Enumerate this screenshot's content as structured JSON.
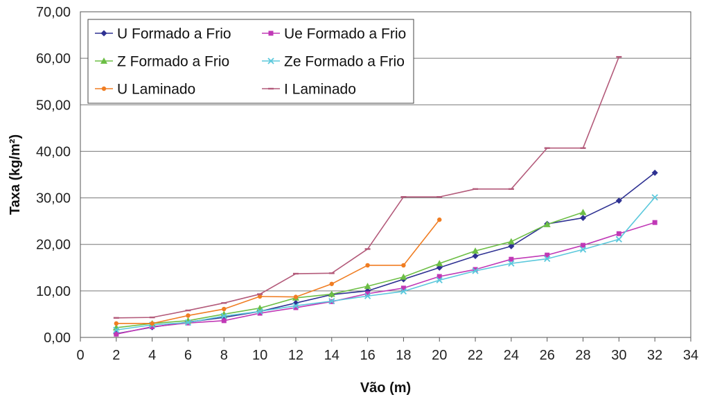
{
  "chart_data": {
    "type": "line",
    "xlabel": "Vão (m)",
    "ylabel": "Taxa (kg/m²)",
    "xlim": [
      0,
      34
    ],
    "ylim": [
      0,
      70
    ],
    "x_ticks": [
      "0",
      "2",
      "4",
      "6",
      "8",
      "10",
      "12",
      "14",
      "16",
      "18",
      "20",
      "22",
      "24",
      "26",
      "28",
      "30",
      "32",
      "34"
    ],
    "y_ticks": [
      "0,00",
      "10,00",
      "20,00",
      "30,00",
      "40,00",
      "50,00",
      "60,00",
      "70,00"
    ],
    "grid": "horizontal",
    "legend_position": "top-left",
    "series": [
      {
        "name": "U Formado a Frio",
        "color": "#2e3192",
        "marker": "diamond",
        "x": [
          2,
          4,
          6,
          8,
          10,
          12,
          14,
          16,
          18,
          20,
          22,
          24,
          26,
          28,
          30,
          32
        ],
        "y": [
          0.8,
          2.2,
          3.3,
          4.3,
          5.6,
          7.4,
          9.2,
          10.0,
          12.5,
          15.0,
          17.5,
          19.6,
          24.4,
          25.7,
          29.4,
          35.4
        ]
      },
      {
        "name": "Ue Formado a Frio",
        "color": "#c038b6",
        "marker": "square",
        "x": [
          2,
          4,
          6,
          8,
          10,
          12,
          14,
          16,
          18,
          20,
          22,
          24,
          26,
          28,
          30,
          32
        ],
        "y": [
          0.7,
          2.3,
          3.1,
          3.6,
          5.2,
          6.4,
          7.7,
          9.4,
          10.6,
          13.1,
          14.6,
          16.8,
          17.7,
          19.8,
          22.3,
          24.7
        ]
      },
      {
        "name": "Z Formado a Frio",
        "color": "#6cbe45",
        "marker": "triangle",
        "x": [
          2,
          4,
          6,
          8,
          10,
          12,
          14,
          16,
          18,
          20,
          22,
          24,
          26,
          28
        ],
        "y": [
          2.1,
          3.0,
          3.6,
          5.0,
          6.3,
          8.5,
          9.3,
          11.0,
          13.0,
          15.9,
          18.6,
          20.6,
          24.3,
          26.9
        ]
      },
      {
        "name": "Ze Formado a Frio",
        "color": "#5ac8dc",
        "marker": "x",
        "x": [
          2,
          4,
          6,
          8,
          10,
          12,
          14,
          16,
          18,
          20,
          22,
          24,
          26,
          28,
          30,
          32
        ],
        "y": [
          1.6,
          2.7,
          3.2,
          4.6,
          5.6,
          6.8,
          7.8,
          8.9,
          9.9,
          12.3,
          14.3,
          15.9,
          16.9,
          18.9,
          21.1,
          30.1
        ]
      },
      {
        "name": "U Laminado",
        "color": "#f07d22",
        "marker": "circle",
        "x": [
          2,
          4,
          6,
          8,
          10,
          12,
          14,
          16,
          18,
          20
        ],
        "y": [
          3.0,
          3.0,
          4.7,
          6.1,
          8.8,
          8.7,
          11.5,
          15.5,
          15.5,
          25.3
        ]
      },
      {
        "name": "I Laminado",
        "color": "#b35a7a",
        "marker": "dash",
        "x": [
          2,
          4,
          6,
          8,
          10,
          12,
          14,
          16,
          18,
          20,
          22,
          24,
          26,
          28,
          30
        ],
        "y": [
          4.2,
          4.3,
          5.8,
          7.4,
          9.3,
          13.7,
          13.8,
          19.0,
          30.2,
          30.2,
          31.9,
          31.9,
          40.7,
          40.7,
          60.3
        ]
      }
    ]
  }
}
